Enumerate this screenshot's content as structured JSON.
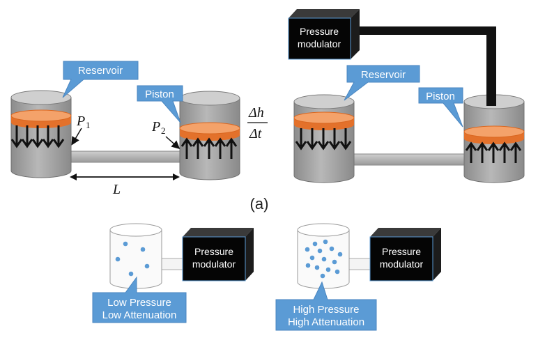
{
  "labels": {
    "reservoir": "Reservoir",
    "piston": "Piston",
    "pressure_modulator": "Pressure\nmodulator",
    "p1": "P",
    "p1_sub": "1",
    "p2": "P",
    "p2_sub": "2",
    "length": "L",
    "delta_h": "Δh",
    "delta_t": "Δt",
    "panel_a": "(a)",
    "low": "Low Pressure\nLow Attenuation",
    "high": "High Pressure\nHigh Attenuation"
  },
  "colors": {
    "callout": "#5b9bd5",
    "cylinder_body": "#a6a6a6",
    "cylinder_top": "#d0d0d0",
    "piston": "#ed7d31",
    "modulator": "#0d0d0d",
    "dots": "#5b9bd5"
  }
}
